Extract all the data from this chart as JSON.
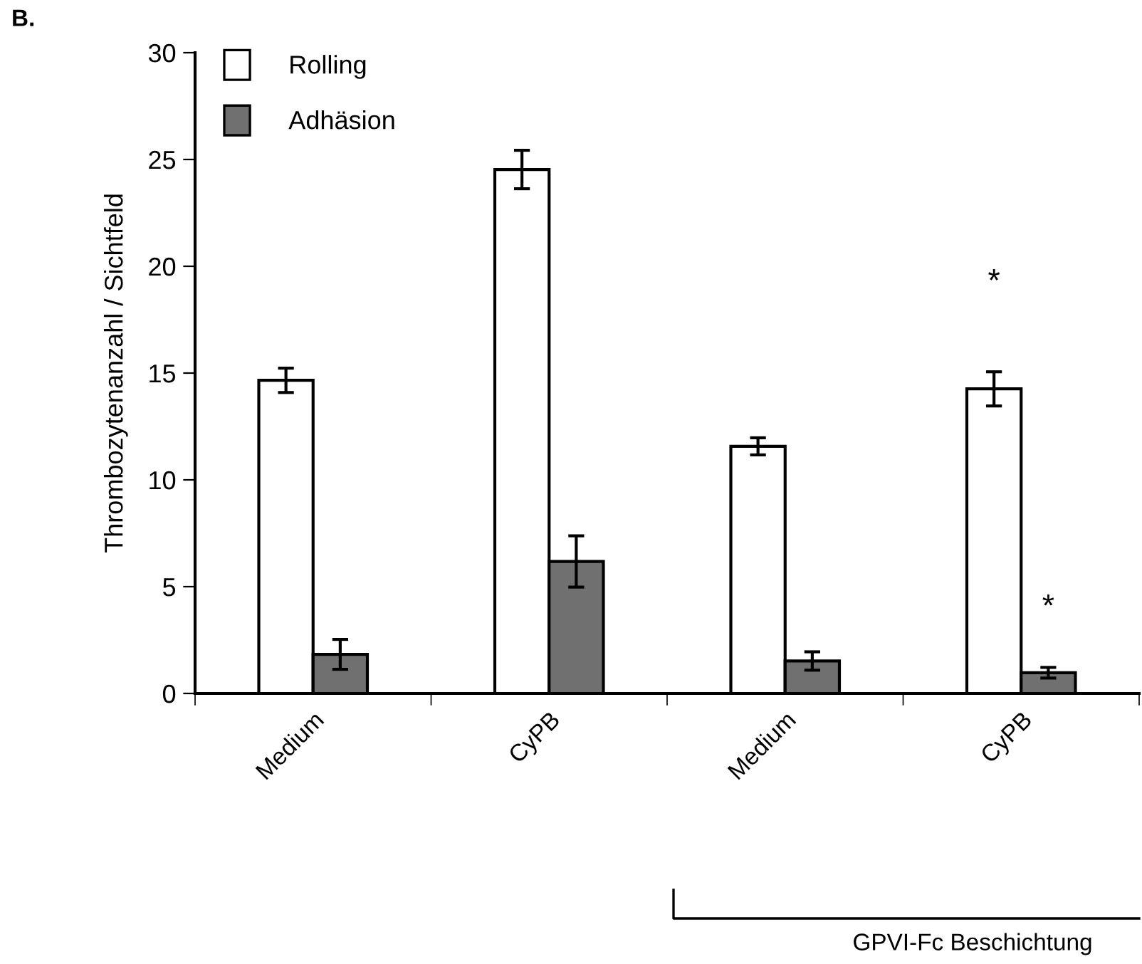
{
  "chart_data": {
    "type": "bar",
    "categories": [
      "Medium",
      "CyPB",
      "Medium",
      "CyPB"
    ],
    "series": [
      {
        "name": "Rolling",
        "color": "#ffffff",
        "values": [
          14.66,
          24.53,
          11.57,
          14.26
        ],
        "errors": [
          0.57,
          0.9,
          0.4,
          0.8
        ]
      },
      {
        "name": "Adhäsion",
        "color": "#707070",
        "values": [
          1.83,
          6.18,
          1.52,
          0.97
        ],
        "errors": [
          0.7,
          1.2,
          0.43,
          0.25
        ]
      }
    ],
    "ylabel": "Thrombozytenanzahl / Sichtfeld",
    "ylim": [
      0,
      30
    ],
    "yticks": [
      0,
      5,
      10,
      15,
      20,
      25,
      30
    ],
    "legend": "top left",
    "grid": false,
    "annotations": [
      "B.",
      "*",
      "*",
      "GPVI-Fc Beschichtung"
    ]
  }
}
